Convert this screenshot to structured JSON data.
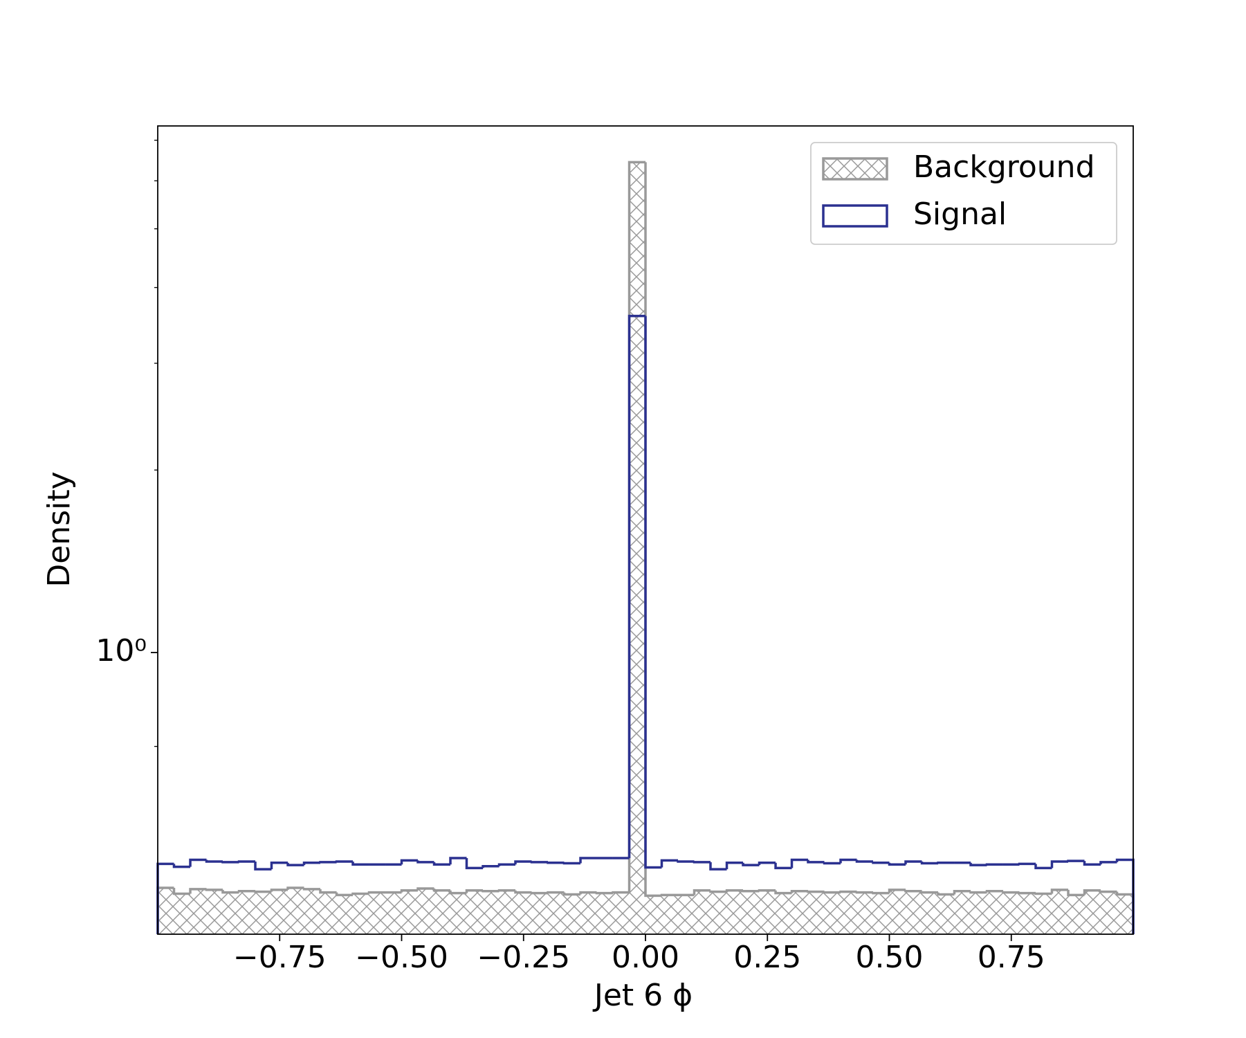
{
  "chart_data": {
    "type": "histogram",
    "xlabel": "Jet 6 ϕ",
    "ylabel": "Density",
    "bins": [
      -1,
      -0.9667,
      -0.9333,
      -0.9,
      -0.8667,
      -0.8333,
      -0.8,
      -0.7667,
      -0.7333,
      -0.7,
      -0.6667,
      -0.6333,
      -0.6,
      -0.5667,
      -0.5333,
      -0.5,
      -0.4667,
      -0.4333,
      -0.4,
      -0.3667,
      -0.3333,
      -0.3,
      -0.2667,
      -0.2333,
      -0.2,
      -0.1667,
      -0.1333,
      -0.1,
      -0.0667,
      -0.0333,
      0,
      0.0333,
      0.0667,
      0.1,
      0.1333,
      0.1667,
      0.2,
      0.2333,
      0.2667,
      0.3,
      0.3333,
      0.3667,
      0.4,
      0.4333,
      0.4667,
      0.5,
      0.5333,
      0.5667,
      0.6,
      0.6333,
      0.6667,
      0.7,
      0.7333,
      0.7667,
      0.8,
      0.8333,
      0.8667,
      0.9,
      0.9333,
      0.9667,
      1
    ],
    "series": [
      {
        "name": "Background",
        "color": "#999999",
        "hatch": true,
        "values": [
          0.409,
          0.4,
          0.407,
          0.406,
          0.402,
          0.404,
          0.403,
          0.406,
          0.409,
          0.407,
          0.402,
          0.398,
          0.4,
          0.402,
          0.402,
          0.405,
          0.408,
          0.405,
          0.401,
          0.405,
          0.404,
          0.405,
          0.402,
          0.401,
          0.402,
          0.399,
          0.402,
          0.401,
          0.402,
          6.44,
          0.397,
          0.398,
          0.398,
          0.405,
          0.403,
          0.405,
          0.404,
          0.405,
          0.401,
          0.404,
          0.403,
          0.402,
          0.403,
          0.402,
          0.401,
          0.406,
          0.404,
          0.402,
          0.399,
          0.404,
          0.402,
          0.404,
          0.402,
          0.401,
          0.4,
          0.406,
          0.398,
          0.405,
          0.403,
          0.399
        ]
      },
      {
        "name": "Signal",
        "color": "#2b3190",
        "hatch": false,
        "values": [
          0.448,
          0.443,
          0.455,
          0.452,
          0.451,
          0.452,
          0.439,
          0.45,
          0.446,
          0.45,
          0.451,
          0.452,
          0.447,
          0.447,
          0.447,
          0.454,
          0.451,
          0.447,
          0.458,
          0.441,
          0.444,
          0.447,
          0.452,
          0.451,
          0.45,
          0.449,
          0.458,
          0.458,
          0.458,
          3.59,
          0.442,
          0.454,
          0.452,
          0.451,
          0.439,
          0.45,
          0.446,
          0.45,
          0.441,
          0.455,
          0.451,
          0.449,
          0.455,
          0.452,
          0.45,
          0.447,
          0.452,
          0.449,
          0.45,
          0.45,
          0.446,
          0.447,
          0.447,
          0.448,
          0.441,
          0.452,
          0.453,
          0.447,
          0.451,
          0.455
        ]
      }
    ],
    "xlim": [
      -1,
      1
    ],
    "xticks": [
      {
        "value": -0.75,
        "label": "−0.75"
      },
      {
        "value": -0.5,
        "label": "−0.50"
      },
      {
        "value": -0.25,
        "label": "−0.25"
      },
      {
        "value": 0,
        "label": "0.00"
      },
      0.25,
      {
        "value": 0.5,
        "label": "0.50"
      },
      0.75
    ],
    "ylim": [
      0.343,
      7.39
    ],
    "yscale": "log",
    "yticks": [
      {
        "value": 1,
        "label": "10⁰"
      }
    ],
    "yminorticks": [
      0.7,
      2,
      3,
      4,
      5,
      6,
      7
    ],
    "legend": "upper right"
  }
}
